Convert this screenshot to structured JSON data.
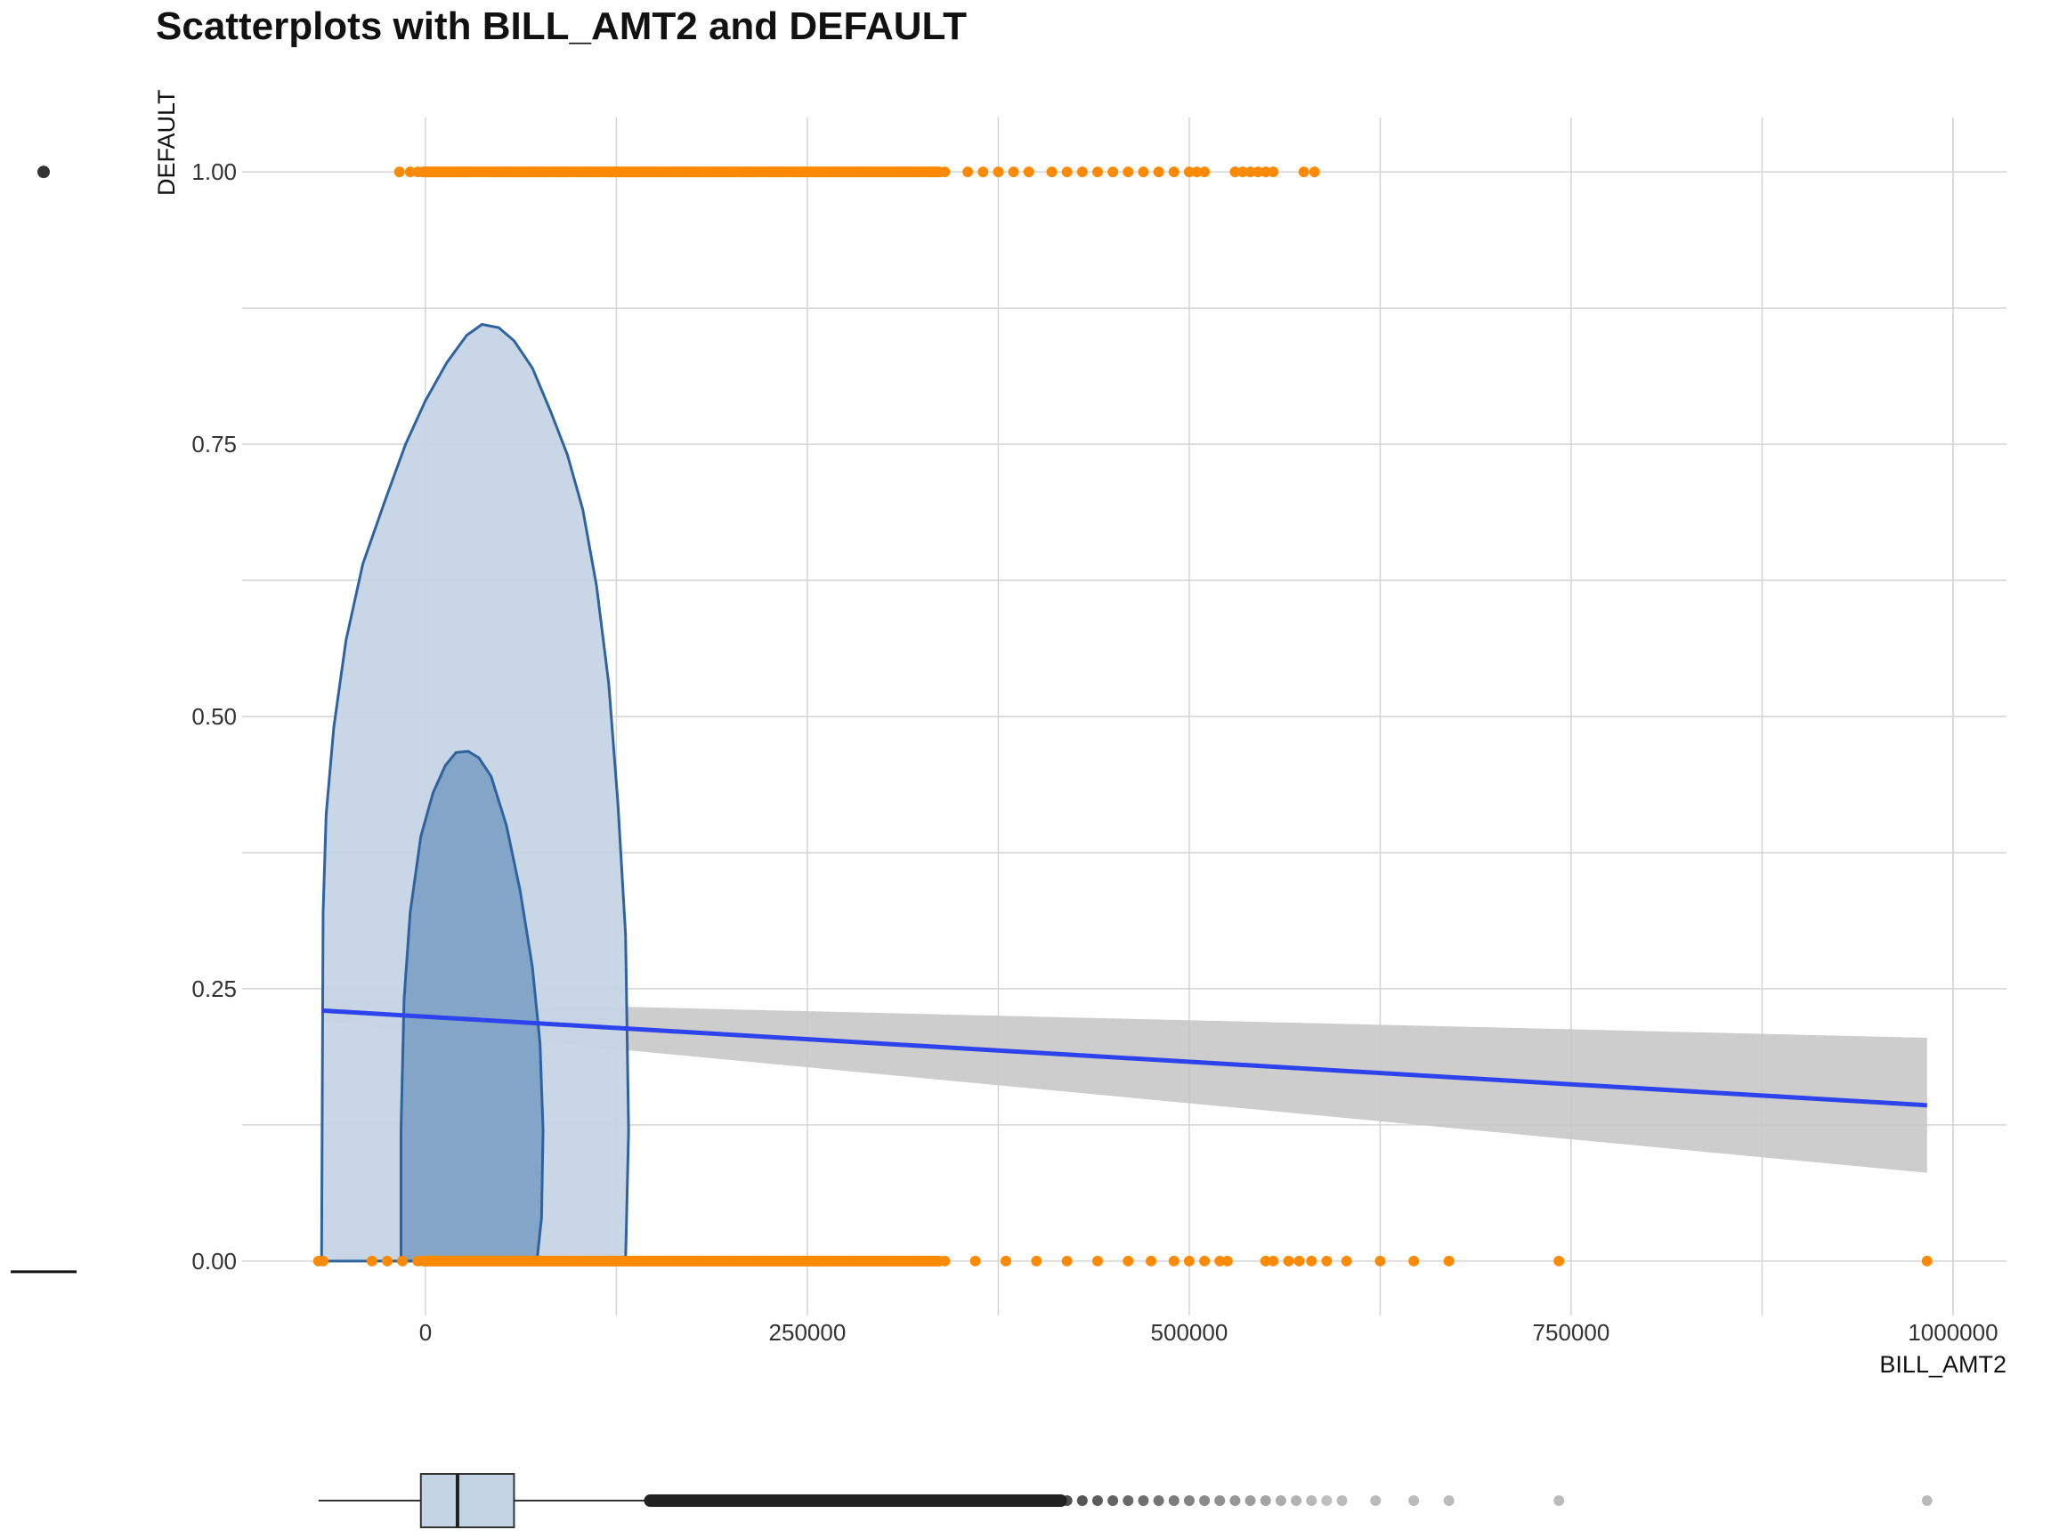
{
  "chart_data": {
    "type": "scatter",
    "title": "Scatterplots with BILL_AMT2 and DEFAULT",
    "xlabel": "BILL_AMT2",
    "ylabel": "DEFAULT",
    "xlim": [
      -120000,
      1035000
    ],
    "ylim": [
      -0.05,
      1.05
    ],
    "x_ticks": [
      0,
      250000,
      500000,
      750000,
      1000000
    ],
    "x_tick_labels": [
      "0",
      "250000",
      "500000",
      "750000",
      "1000000"
    ],
    "y_ticks": [
      0,
      0.25,
      0.5,
      0.75,
      1.0
    ],
    "y_tick_labels": [
      "0.00",
      "0.25",
      "0.50",
      "0.75",
      "1.00"
    ],
    "grid": true,
    "points_default_1": [
      -17000,
      -10000,
      -5000,
      0,
      5000,
      12000,
      20000,
      30000,
      45000,
      60000,
      80000,
      100000,
      120000,
      140000,
      160000,
      180000,
      200000,
      220000,
      240000,
      260000,
      280000,
      300000,
      320000,
      340000,
      355000,
      365000,
      375000,
      385000,
      395000,
      410000,
      420000,
      430000,
      440000,
      450000,
      460000,
      470000,
      480000,
      490000,
      500000,
      505000,
      510000,
      530000,
      535000,
      540000,
      545000,
      550000,
      555000,
      575000,
      582000
    ],
    "points_default_0": [
      -70000,
      -67000,
      -35000,
      -25000,
      -15000,
      -5000,
      0,
      10000,
      20000,
      30000,
      45000,
      60000,
      80000,
      100000,
      120000,
      140000,
      160000,
      180000,
      200000,
      220000,
      240000,
      260000,
      280000,
      300000,
      320000,
      340000,
      360000,
      380000,
      400000,
      420000,
      440000,
      460000,
      475000,
      490000,
      500000,
      510000,
      520000,
      525000,
      550000,
      555000,
      565000,
      572000,
      580000,
      590000,
      603000,
      625000,
      647000,
      670000,
      742000,
      983000
    ],
    "regression_line": {
      "x": [
        -68000,
        983000
      ],
      "y": [
        0.23,
        0.143
      ]
    },
    "confidence_band": {
      "x": [
        -68000,
        983000
      ],
      "upper": [
        0.24,
        0.205
      ],
      "lower": [
        0.22,
        0.081
      ]
    },
    "density_contour_outer": [
      [
        -68000,
        0
      ],
      [
        -67000,
        0.32
      ],
      [
        -65000,
        0.41
      ],
      [
        -60000,
        0.49
      ],
      [
        -52000,
        0.57
      ],
      [
        -41000,
        0.64
      ],
      [
        -26000,
        0.7
      ],
      [
        -13000,
        0.75
      ],
      [
        0,
        0.79
      ],
      [
        14000,
        0.825
      ],
      [
        27000,
        0.85
      ],
      [
        37000,
        0.86
      ],
      [
        48000,
        0.857
      ],
      [
        58000,
        0.845
      ],
      [
        70000,
        0.82
      ],
      [
        82000,
        0.78
      ],
      [
        93000,
        0.74
      ],
      [
        103000,
        0.69
      ],
      [
        112000,
        0.62
      ],
      [
        120000,
        0.53
      ],
      [
        126000,
        0.42
      ],
      [
        131000,
        0.3
      ],
      [
        133000,
        0.12
      ],
      [
        131000,
        0
      ],
      [
        -68000,
        0
      ]
    ],
    "density_contour_inner": [
      [
        -16000,
        0
      ],
      [
        -16000,
        0.12
      ],
      [
        -14000,
        0.24
      ],
      [
        -10000,
        0.32
      ],
      [
        -3000,
        0.39
      ],
      [
        5000,
        0.43
      ],
      [
        13000,
        0.455
      ],
      [
        20000,
        0.467
      ],
      [
        28000,
        0.468
      ],
      [
        35000,
        0.462
      ],
      [
        43000,
        0.445
      ],
      [
        53000,
        0.4
      ],
      [
        62000,
        0.34
      ],
      [
        70000,
        0.27
      ],
      [
        75000,
        0.2
      ],
      [
        77000,
        0.12
      ],
      [
        76000,
        0.04
      ],
      [
        73000,
        0
      ],
      [
        -16000,
        0
      ]
    ],
    "boxplot": {
      "whisker_low": -70000,
      "q1": -3000,
      "median": 21000,
      "q3": 58000,
      "whisker_high": 146000,
      "outlier_start": 146000,
      "outliers": [
        600000,
        622000,
        647000,
        670000,
        742000,
        983000
      ]
    },
    "colors": {
      "points": "#ff8a00",
      "regression": "#2d43ee",
      "band": "#c8c8c8",
      "contour_outer_fill": "#c5d4e4",
      "contour_inner_fill": "#7ea2c6",
      "contour_stroke": "#2f63a0",
      "boxplot_fill": "#c5d4e4",
      "grid": "#d4d4d4"
    }
  }
}
